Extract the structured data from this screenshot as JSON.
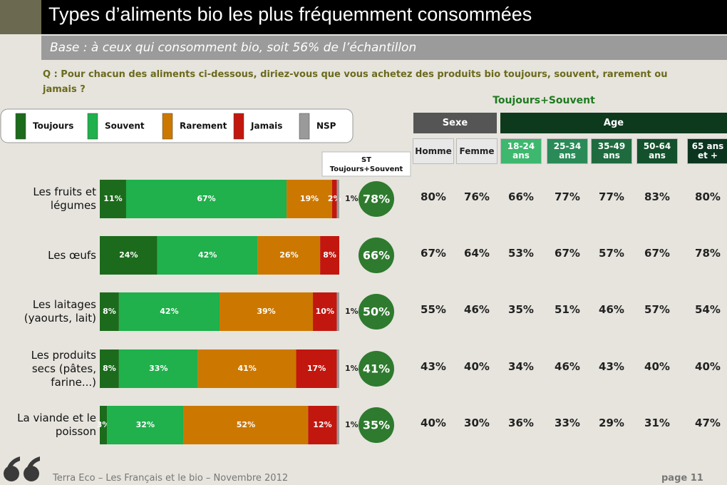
{
  "header": {
    "title": "Types d’aliments bio les plus fréquemment consommées",
    "subtitle": "Base : à ceux qui consomment bio, soit 56% de l’échantillon",
    "question": "Q : Pour chacun des aliments ci-dessous, diriez-vous que vous achetez des produits bio toujours, souvent, rarement ou jamais ?"
  },
  "chart_data": {
    "type": "stacked_bar_horizontal",
    "categories": [
      "Les fruits et légumes",
      "Les œufs",
      "Les laitages (yaourts, lait)",
      "Les produits secs (pâtes, farine...)",
      "La viande et le poisson"
    ],
    "xlim": [
      0,
      100
    ],
    "series": [
      {
        "name": "Toujours",
        "color": "#1c6b1c",
        "values": [
          11,
          24,
          8,
          8,
          3
        ],
        "value_labels": [
          "11%",
          "24%",
          "8%",
          "8%",
          "3%"
        ]
      },
      {
        "name": "Souvent",
        "color": "#20b04c",
        "values": [
          67,
          42,
          42,
          33,
          32
        ],
        "value_labels": [
          "67%",
          "42%",
          "42%",
          "33%",
          "32%"
        ]
      },
      {
        "name": "Rarement",
        "color": "#cc7800",
        "values": [
          19,
          26,
          39,
          41,
          52
        ],
        "value_labels": [
          "19%",
          "26%",
          "39%",
          "41%",
          "52%"
        ]
      },
      {
        "name": "Jamais",
        "color": "#c2170f",
        "values": [
          2,
          8,
          10,
          17,
          12
        ],
        "value_labels": [
          "2%",
          "8%",
          "10%",
          "17%",
          "12%"
        ]
      },
      {
        "name": "NSP",
        "color": "#9a9a9a",
        "values": [
          1,
          null,
          1,
          1,
          1
        ],
        "value_labels": [
          "1%",
          null,
          "1%",
          "1%",
          "1%"
        ]
      }
    ],
    "st_header": [
      "ST",
      "Toujours+Souvent"
    ],
    "st_color": "#2e7a2e",
    "st_values": [
      78,
      66,
      50,
      41,
      35
    ],
    "st_value_labels": [
      "78%",
      "66%",
      "50%",
      "41%",
      "35%"
    ]
  },
  "table": {
    "title": "Toujours+Souvent",
    "groups": [
      "Sexe",
      "Age"
    ],
    "columns": [
      "Homme",
      "Femme",
      "18-24 ans",
      "25-34 ans",
      "35-49 ans",
      "50-64 ans",
      "65 ans et +"
    ],
    "rows": [
      [
        "80%",
        "76%",
        "66%",
        "77%",
        "77%",
        "83%",
        "80%"
      ],
      [
        "67%",
        "64%",
        "53%",
        "67%",
        "57%",
        "67%",
        "78%"
      ],
      [
        "55%",
        "46%",
        "35%",
        "51%",
        "46%",
        "57%",
        "54%"
      ],
      [
        "43%",
        "40%",
        "34%",
        "46%",
        "43%",
        "40%",
        "40%"
      ],
      [
        "40%",
        "30%",
        "36%",
        "33%",
        "29%",
        "31%",
        "47%"
      ]
    ]
  },
  "footer": {
    "source": "Terra Eco – Les Français et le bio – Novembre 2012",
    "page": "page 11"
  }
}
